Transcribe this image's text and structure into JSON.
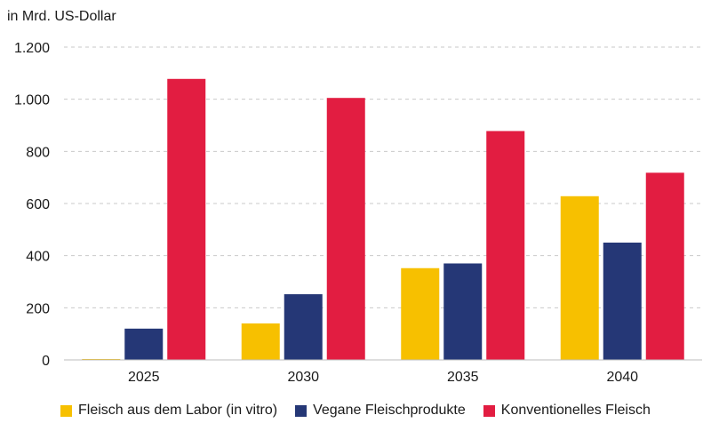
{
  "chart_data": {
    "type": "bar",
    "title": "",
    "ylabel": "in Mrd. US-Dollar",
    "xlabel": "",
    "ylim": [
      0,
      1200
    ],
    "yticks": [
      0,
      200,
      400,
      600,
      800,
      1000,
      1200
    ],
    "ytick_labels": [
      "0",
      "200",
      "400",
      "600",
      "800",
      "1.000",
      "1.200"
    ],
    "categories": [
      "2025",
      "2030",
      "2035",
      "2040"
    ],
    "grid": "horizontal dashed",
    "legend_position": "bottom",
    "series": [
      {
        "name": "Fleisch aus dem Labor (in vitro)",
        "color": "#f7c000",
        "values": [
          0,
          140,
          352,
          628
        ]
      },
      {
        "name": "Vegane Fleischprodukte",
        "color": "#253776",
        "values": [
          120,
          252,
          370,
          450
        ]
      },
      {
        "name": "Konventionelles Fleisch",
        "color": "#e21d41",
        "values": [
          1078,
          1005,
          878,
          718
        ]
      }
    ]
  }
}
